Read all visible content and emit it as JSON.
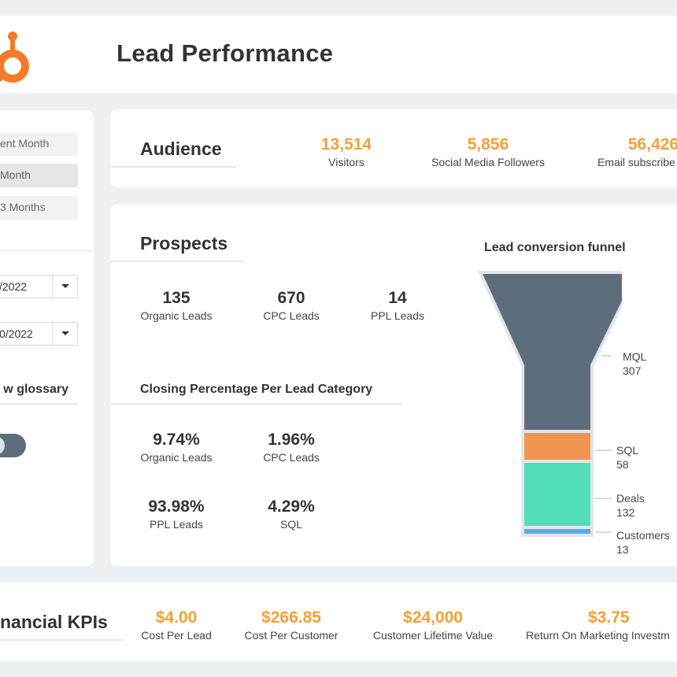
{
  "header": {
    "title": "Lead Performance"
  },
  "sidebar": {
    "periods": [
      "ent Month",
      "Month",
      "3 Months"
    ],
    "active_period": "Month",
    "date_from": "/2022",
    "date_to": "0/2022",
    "glossary_label": "w glossary"
  },
  "audience": {
    "title": "Audience",
    "kpis": [
      {
        "value": "13,514",
        "label": "Visitors"
      },
      {
        "value": "5,856",
        "label": "Social Media Followers"
      },
      {
        "value": "56,426",
        "label": "Email subscribe"
      }
    ]
  },
  "prospects": {
    "title": "Prospects",
    "leads": [
      {
        "value": "135",
        "label": "Organic Leads"
      },
      {
        "value": "670",
        "label": "CPC Leads"
      },
      {
        "value": "14",
        "label": "PPL Leads"
      }
    ],
    "closing_title": "Closing Percentage Per Lead Category",
    "closing": [
      {
        "value": "9.74%",
        "label": "Organic Leads"
      },
      {
        "value": "1.96%",
        "label": "CPC Leads"
      },
      {
        "value": "93.98%",
        "label": "PPL Leads"
      },
      {
        "value": "4.29%",
        "label": "SQL"
      }
    ]
  },
  "funnel": {
    "title": "Lead conversion funnel",
    "stages": [
      {
        "name": "MQL",
        "value": "307",
        "color": "#5e6d7b"
      },
      {
        "name": "SQL",
        "value": "58",
        "color": "#f19553"
      },
      {
        "name": "Deals",
        "value": "132",
        "color": "#52dfb8"
      },
      {
        "name": "Customers",
        "value": "13",
        "color": "#54aee6"
      }
    ]
  },
  "financial": {
    "title": "nancial KPIs",
    "kpis": [
      {
        "value": "$4.00",
        "label": "Cost Per Lead"
      },
      {
        "value": "$266.85",
        "label": "Cost Per Customer"
      },
      {
        "value": "$24,000",
        "label": "Customer Lifetime Value"
      },
      {
        "value": "$3.75",
        "label": "Return On Marketing Investm"
      }
    ]
  },
  "colors": {
    "accent": "#f2a134",
    "logo": "#f27c2a",
    "toggle": "#5d6d7c"
  }
}
